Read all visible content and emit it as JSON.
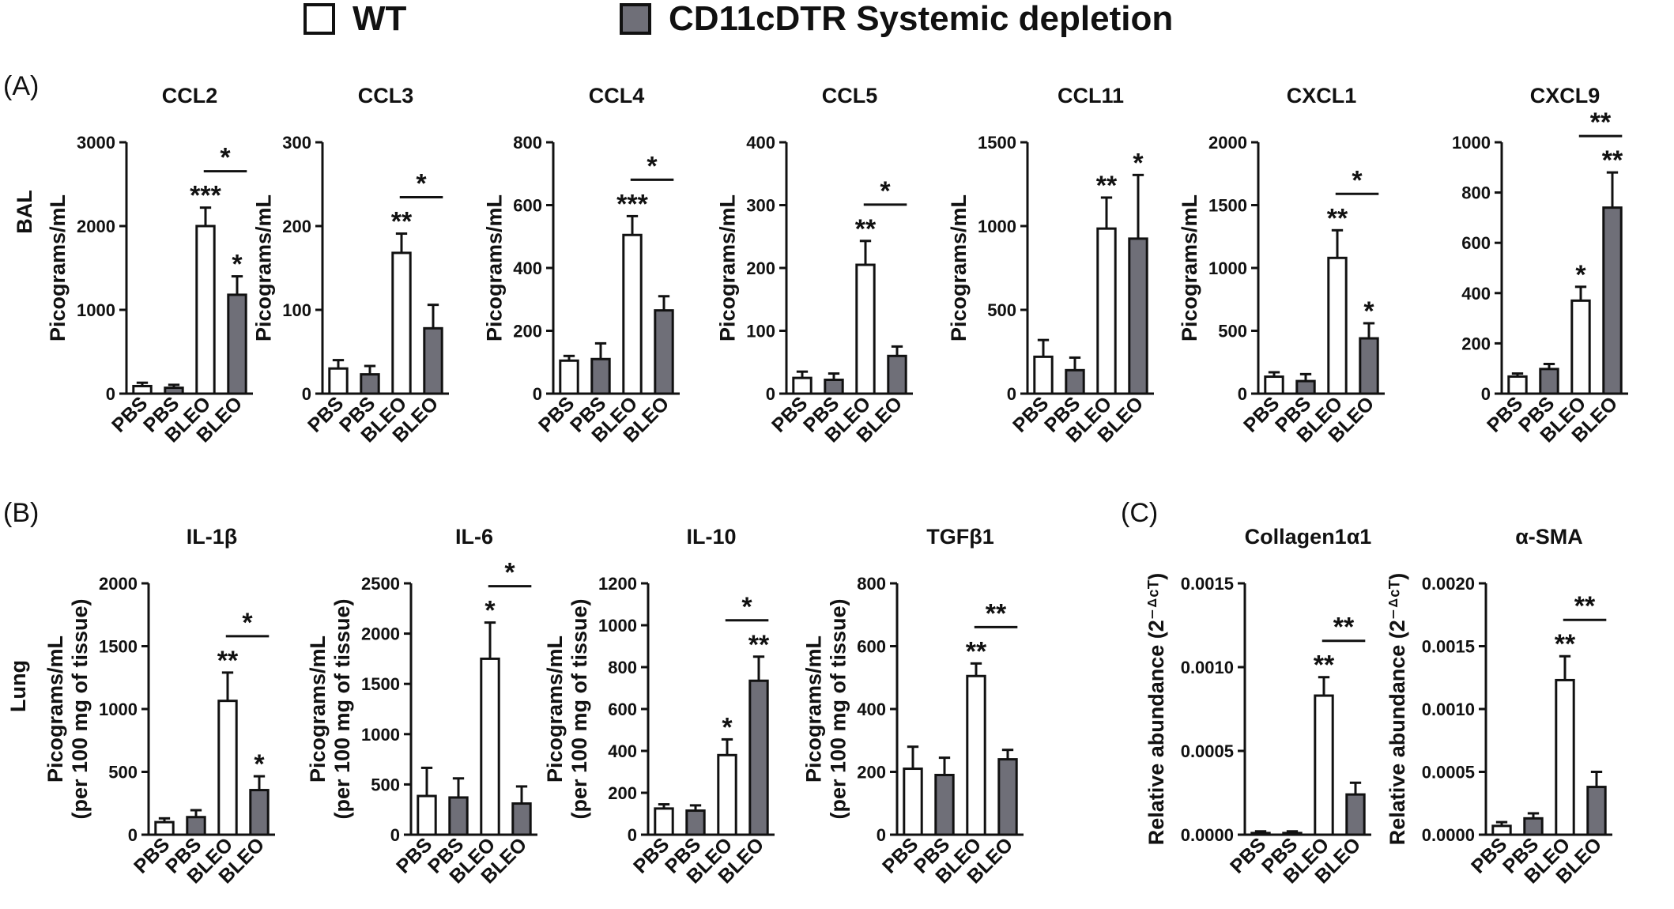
{
  "legend": {
    "items": [
      {
        "label": "WT",
        "color": "#ffffff"
      },
      {
        "label": "CD11cDTR Systemic depletion",
        "color": "#7a7a85"
      }
    ]
  },
  "panel_labels": {
    "A": "(A)",
    "B": "(B)",
    "C": "(C)"
  },
  "row_labels": {
    "bal": "BAL",
    "lung": "Lung"
  },
  "colors": {
    "wt": "#ffffff",
    "dtr": "#6f6f78",
    "ink": "#111111"
  },
  "chart_data": [
    {
      "type": "bar",
      "title": "CCL2",
      "ylabel": [
        "Picograms/mL"
      ],
      "ylim": [
        0,
        3000
      ],
      "yticks": [
        {
          "v": 0,
          "label": "0"
        },
        {
          "v": 1000,
          "label": "1000"
        },
        {
          "v": 2000,
          "label": "2000"
        },
        {
          "v": 3000,
          "label": "3000"
        }
      ],
      "categories": [
        "PBS",
        "PBS",
        "BLEO",
        "BLEO"
      ],
      "values": [
        90,
        70,
        2000,
        1180
      ],
      "errors": [
        40,
        35,
        220,
        220
      ],
      "bar_sig": [
        "",
        "",
        "***",
        "*"
      ],
      "bracket": "*"
    },
    {
      "type": "bar",
      "title": "CCL3",
      "ylabel": [
        "Picograms/mL"
      ],
      "ylim": [
        0,
        300
      ],
      "yticks": [
        {
          "v": 0,
          "label": "0"
        },
        {
          "v": 100,
          "label": "100"
        },
        {
          "v": 200,
          "label": "200"
        },
        {
          "v": 300,
          "label": "300"
        }
      ],
      "categories": [
        "PBS",
        "PBS",
        "BLEO",
        "BLEO"
      ],
      "values": [
        30,
        23,
        168,
        78
      ],
      "errors": [
        10,
        10,
        23,
        28
      ],
      "bar_sig": [
        "",
        "",
        "**",
        ""
      ],
      "bracket": "*"
    },
    {
      "type": "bar",
      "title": "CCL4",
      "ylabel": [
        "Picograms/mL"
      ],
      "ylim": [
        0,
        800
      ],
      "yticks": [
        {
          "v": 0,
          "label": "0"
        },
        {
          "v": 200,
          "label": "200"
        },
        {
          "v": 400,
          "label": "400"
        },
        {
          "v": 600,
          "label": "600"
        },
        {
          "v": 800,
          "label": "800"
        }
      ],
      "categories": [
        "PBS",
        "PBS",
        "BLEO",
        "BLEO"
      ],
      "values": [
        105,
        110,
        505,
        265
      ],
      "errors": [
        15,
        50,
        60,
        45
      ],
      "bar_sig": [
        "",
        "",
        "***",
        ""
      ],
      "bracket": "*"
    },
    {
      "type": "bar",
      "title": "CCL5",
      "ylabel": [
        "Picograms/mL"
      ],
      "ylim": [
        0,
        400
      ],
      "yticks": [
        {
          "v": 0,
          "label": "0"
        },
        {
          "v": 100,
          "label": "100"
        },
        {
          "v": 200,
          "label": "200"
        },
        {
          "v": 300,
          "label": "300"
        },
        {
          "v": 400,
          "label": "400"
        }
      ],
      "categories": [
        "PBS",
        "PBS",
        "BLEO",
        "BLEO"
      ],
      "values": [
        25,
        22,
        205,
        60
      ],
      "errors": [
        10,
        10,
        38,
        15
      ],
      "bar_sig": [
        "",
        "",
        "**",
        ""
      ],
      "bracket": "*"
    },
    {
      "type": "bar",
      "title": "CCL11",
      "ylabel": [
        "Picograms/mL"
      ],
      "ylim": [
        0,
        1500
      ],
      "yticks": [
        {
          "v": 0,
          "label": "0"
        },
        {
          "v": 500,
          "label": "500"
        },
        {
          "v": 1000,
          "label": "1000"
        },
        {
          "v": 1500,
          "label": "1500"
        }
      ],
      "categories": [
        "PBS",
        "PBS",
        "BLEO",
        "BLEO"
      ],
      "values": [
        220,
        140,
        985,
        925
      ],
      "errors": [
        100,
        75,
        185,
        380
      ],
      "bar_sig": [
        "",
        "",
        "**",
        "*"
      ],
      "bracket": ""
    },
    {
      "type": "bar",
      "title": "CXCL1",
      "ylabel": [
        "Picograms/mL"
      ],
      "ylim": [
        0,
        2000
      ],
      "yticks": [
        {
          "v": 0,
          "label": "0"
        },
        {
          "v": 500,
          "label": "500"
        },
        {
          "v": 1000,
          "label": "1000"
        },
        {
          "v": 1500,
          "label": "1500"
        },
        {
          "v": 2000,
          "label": "2000"
        }
      ],
      "categories": [
        "PBS",
        "PBS",
        "BLEO",
        "BLEO"
      ],
      "values": [
        135,
        100,
        1080,
        440
      ],
      "errors": [
        35,
        55,
        220,
        120
      ],
      "bar_sig": [
        "",
        "",
        "**",
        "*"
      ],
      "bracket": "*"
    },
    {
      "type": "bar",
      "title": "CXCL9",
      "ylabel": [],
      "ylim": [
        0,
        1000
      ],
      "yticks": [
        {
          "v": 0,
          "label": "0"
        },
        {
          "v": 200,
          "label": "200"
        },
        {
          "v": 400,
          "label": "400"
        },
        {
          "v": 600,
          "label": "600"
        },
        {
          "v": 800,
          "label": "800"
        },
        {
          "v": 1000,
          "label": "1000"
        }
      ],
      "categories": [
        "PBS",
        "PBS",
        "BLEO",
        "BLEO"
      ],
      "values": [
        68,
        98,
        370,
        740
      ],
      "errors": [
        12,
        20,
        55,
        140
      ],
      "bar_sig": [
        "",
        "",
        "*",
        "**"
      ],
      "bracket": "**"
    },
    {
      "type": "bar",
      "title": "IL-1β",
      "ylabel": [
        "Picograms/mL",
        "(per 100 mg of tissue)"
      ],
      "ylim": [
        0,
        2000
      ],
      "yticks": [
        {
          "v": 0,
          "label": "0"
        },
        {
          "v": 500,
          "label": "500"
        },
        {
          "v": 1000,
          "label": "1000"
        },
        {
          "v": 1500,
          "label": "1500"
        },
        {
          "v": 2000,
          "label": "2000"
        }
      ],
      "categories": [
        "PBS",
        "PBS",
        "BLEO",
        "BLEO"
      ],
      "values": [
        100,
        140,
        1065,
        355
      ],
      "errors": [
        30,
        55,
        225,
        110
      ],
      "bar_sig": [
        "",
        "",
        "**",
        "*"
      ],
      "bracket": "*"
    },
    {
      "type": "bar",
      "title": "IL-6",
      "ylabel": [
        "Picograms/mL",
        "(per 100 mg of tissue)"
      ],
      "ylim": [
        0,
        2500
      ],
      "yticks": [
        {
          "v": 0,
          "label": "0"
        },
        {
          "v": 500,
          "label": "500"
        },
        {
          "v": 1000,
          "label": "1000"
        },
        {
          "v": 1500,
          "label": "1500"
        },
        {
          "v": 2000,
          "label": "2000"
        },
        {
          "v": 2500,
          "label": "2500"
        }
      ],
      "categories": [
        "PBS",
        "PBS",
        "BLEO",
        "BLEO"
      ],
      "values": [
        385,
        370,
        1750,
        310
      ],
      "errors": [
        280,
        190,
        360,
        170
      ],
      "bar_sig": [
        "",
        "",
        "*",
        ""
      ],
      "bracket": "*"
    },
    {
      "type": "bar",
      "title": "IL-10",
      "ylabel": [
        "Picograms/mL",
        "(per 100 mg of tissue)"
      ],
      "ylim": [
        0,
        1200
      ],
      "yticks": [
        {
          "v": 0,
          "label": "0"
        },
        {
          "v": 200,
          "label": "200"
        },
        {
          "v": 400,
          "label": "400"
        },
        {
          "v": 600,
          "label": "600"
        },
        {
          "v": 800,
          "label": "800"
        },
        {
          "v": 1000,
          "label": "1000"
        },
        {
          "v": 1200,
          "label": "1200"
        }
      ],
      "categories": [
        "PBS",
        "PBS",
        "BLEO",
        "BLEO"
      ],
      "values": [
        125,
        115,
        380,
        735
      ],
      "errors": [
        20,
        25,
        75,
        115
      ],
      "bar_sig": [
        "",
        "",
        "*",
        "**"
      ],
      "bracket": "*"
    },
    {
      "type": "bar",
      "title": "TGFβ1",
      "ylabel": [
        "Picograms/mL",
        "(per 100 mg of tissue)"
      ],
      "ylim": [
        0,
        800
      ],
      "yticks": [
        {
          "v": 0,
          "label": "0"
        },
        {
          "v": 200,
          "label": "200"
        },
        {
          "v": 400,
          "label": "400"
        },
        {
          "v": 600,
          "label": "600"
        },
        {
          "v": 800,
          "label": "800"
        }
      ],
      "categories": [
        "PBS",
        "PBS",
        "BLEO",
        "BLEO"
      ],
      "values": [
        210,
        190,
        505,
        240
      ],
      "errors": [
        70,
        55,
        40,
        30
      ],
      "bar_sig": [
        "",
        "",
        "**",
        ""
      ],
      "bracket": "**"
    },
    {
      "type": "bar",
      "title": "Collagen1α1",
      "ylabel": [
        "Relative abundance (2⁻ᐞᶜᵀ)"
      ],
      "ylim": [
        0,
        0.0015
      ],
      "yticks": [
        {
          "v": 0,
          "label": "0.0000"
        },
        {
          "v": 0.0005,
          "label": "0.0005"
        },
        {
          "v": 0.001,
          "label": "0.0010"
        },
        {
          "v": 0.0015,
          "label": "0.0015"
        }
      ],
      "categories": [
        "PBS",
        "PBS",
        "BLEO",
        "BLEO"
      ],
      "values": [
        1e-05,
        1e-05,
        0.00083,
        0.00024
      ],
      "errors": [
        1e-05,
        1e-05,
        0.00011,
        7e-05
      ],
      "bar_sig": [
        "",
        "",
        "**",
        ""
      ],
      "bracket": "**"
    },
    {
      "type": "bar",
      "title": "α-SMA",
      "ylabel": [
        "Relative abundance (2⁻ᐞᶜᵀ)"
      ],
      "ylim": [
        0,
        0.002
      ],
      "yticks": [
        {
          "v": 0,
          "label": "0.0000"
        },
        {
          "v": 0.0005,
          "label": "0.0005"
        },
        {
          "v": 0.001,
          "label": "0.0010"
        },
        {
          "v": 0.0015,
          "label": "0.0015"
        },
        {
          "v": 0.002,
          "label": "0.0020"
        }
      ],
      "categories": [
        "PBS",
        "PBS",
        "BLEO",
        "BLEO"
      ],
      "values": [
        7e-05,
        0.00013,
        0.00123,
        0.00038
      ],
      "errors": [
        3e-05,
        4e-05,
        0.00019,
        0.00012
      ],
      "bar_sig": [
        "",
        "",
        "**",
        ""
      ],
      "bracket": "**"
    }
  ]
}
